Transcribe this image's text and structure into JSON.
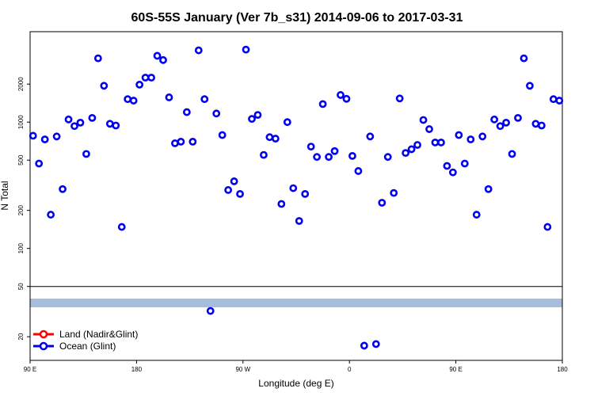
{
  "chart_data": {
    "type": "scatter",
    "title": "60S-55S January (Ver 7b_s31)   2014-09-06 to 2017-03-31",
    "xlabel": "Longitude (deg E)",
    "ylabel": "N Total",
    "y_scale": "log",
    "ylim": [
      13,
      5200
    ],
    "x_ticks": [
      {
        "value": 0,
        "label": "90 E"
      },
      {
        "value": 90,
        "label": "180"
      },
      {
        "value": 180,
        "label": "90 W"
      },
      {
        "value": 270,
        "label": "0"
      },
      {
        "value": 360,
        "label": "90 E"
      },
      {
        "value": 450,
        "label": "180"
      }
    ],
    "xlim": [
      0,
      450
    ],
    "y_ticks": [
      20,
      50,
      100,
      200,
      500,
      1000,
      2000
    ],
    "separator_y": 50,
    "grid": false,
    "legend_position": "bottom-left",
    "band": {
      "y": 37,
      "color": "#a6bddb"
    },
    "series": [
      {
        "name": "Land (Nadir&Glint)",
        "color": "#ff0000",
        "points": []
      },
      {
        "name": "Ocean (Glint)",
        "color": "#0000ee",
        "points": [
          [
            2.5,
            780
          ],
          [
            7.5,
            470
          ],
          [
            12.5,
            730
          ],
          [
            17.5,
            185
          ],
          [
            22.5,
            770
          ],
          [
            27.5,
            295
          ],
          [
            32.5,
            1050
          ],
          [
            37.5,
            930
          ],
          [
            42.5,
            990
          ],
          [
            47.5,
            560
          ],
          [
            52.5,
            1080
          ],
          [
            57.5,
            3200
          ],
          [
            62.5,
            1940
          ],
          [
            67.5,
            970
          ],
          [
            72.5,
            940
          ],
          [
            77.5,
            148
          ],
          [
            82.5,
            1520
          ],
          [
            87.5,
            1480
          ],
          [
            92.5,
            1980
          ],
          [
            97.5,
            2250
          ],
          [
            102.5,
            2250
          ],
          [
            107.5,
            3350
          ],
          [
            112.5,
            3100
          ],
          [
            117.5,
            1570
          ],
          [
            122.5,
            680
          ],
          [
            127.5,
            700
          ],
          [
            132.5,
            1200
          ],
          [
            137.5,
            700
          ],
          [
            142.5,
            3700
          ],
          [
            147.5,
            1520
          ],
          [
            152.5,
            32
          ],
          [
            157.5,
            1170
          ],
          [
            162.5,
            790
          ],
          [
            167.5,
            290
          ],
          [
            172.5,
            340
          ],
          [
            177.5,
            270
          ],
          [
            182.5,
            3750
          ],
          [
            187.5,
            1060
          ],
          [
            192.5,
            1140
          ],
          [
            197.5,
            550
          ],
          [
            202.5,
            760
          ],
          [
            207.5,
            740
          ],
          [
            212.5,
            225
          ],
          [
            217.5,
            1000
          ],
          [
            222.5,
            300
          ],
          [
            227.5,
            165
          ],
          [
            232.5,
            270
          ],
          [
            237.5,
            640
          ],
          [
            242.5,
            530
          ],
          [
            247.5,
            1390
          ],
          [
            252.5,
            530
          ],
          [
            257.5,
            590
          ],
          [
            262.5,
            1640
          ],
          [
            267.5,
            1530
          ],
          [
            272.5,
            540
          ],
          [
            277.5,
            410
          ],
          [
            282.5,
            17
          ],
          [
            287.5,
            770
          ],
          [
            292.5,
            17.5
          ],
          [
            297.5,
            230
          ],
          [
            302.5,
            530
          ],
          [
            307.5,
            275
          ],
          [
            312.5,
            1540
          ],
          [
            317.5,
            570
          ],
          [
            322.5,
            610
          ],
          [
            327.5,
            660
          ],
          [
            332.5,
            1040
          ],
          [
            337.5,
            880
          ],
          [
            342.5,
            690
          ],
          [
            347.5,
            690
          ],
          [
            352.5,
            450
          ],
          [
            357.5,
            400
          ],
          [
            362.5,
            790
          ],
          [
            367.5,
            470
          ],
          [
            372.5,
            730
          ],
          [
            377.5,
            185
          ],
          [
            382.5,
            770
          ],
          [
            387.5,
            295
          ],
          [
            392.5,
            1050
          ],
          [
            397.5,
            930
          ],
          [
            402.5,
            990
          ],
          [
            407.5,
            560
          ],
          [
            412.5,
            1080
          ],
          [
            417.5,
            3200
          ],
          [
            422.5,
            1940
          ],
          [
            427.5,
            970
          ],
          [
            432.5,
            940
          ],
          [
            437.5,
            148
          ],
          [
            442.5,
            1520
          ],
          [
            447.5,
            1480
          ]
        ]
      }
    ]
  }
}
